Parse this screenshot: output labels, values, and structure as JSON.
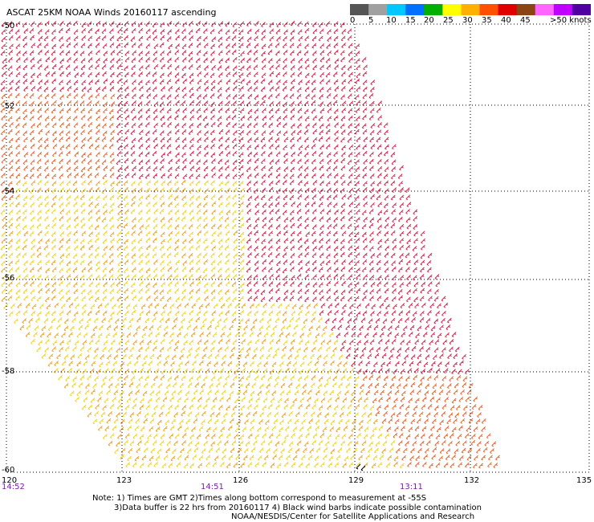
{
  "title": "ASCAT 25KM NOAA Winds 20160117 ascending",
  "color_scale": {
    "unit_label": ">50 knots",
    "labels": [
      "0",
      "5",
      "10",
      "15",
      "20",
      "25",
      "30",
      "35",
      "40",
      "45"
    ],
    "colors": [
      "#555555",
      "#a0a0a0",
      "#00c8ff",
      "#0070ff",
      "#00b000",
      "#ffff00",
      "#ffb000",
      "#ff5000",
      "#e00000",
      "#8b4513",
      "#ff66ff",
      "#c000ff",
      "#5000a0"
    ]
  },
  "latitude_labels": [
    "-50",
    "-52",
    "-54",
    "-56",
    "-58",
    "-60"
  ],
  "longitude_labels": [
    "120",
    "123",
    "126",
    "129",
    "132",
    "135"
  ],
  "time_labels": [
    "14:52",
    "14:51",
    "13:11"
  ],
  "notes": {
    "line1": "Note: 1) Times are GMT 2)Times along bottom correspond to measurement at -55S",
    "line2": "3)Data buffer is 22 hrs from 20160117 4) Black wind barbs indicate possible contamination",
    "line3": "NOAA/NESDIS/Center for Satellite Applications and Research"
  },
  "wind_colors": {
    "strong": "#d8204a",
    "moderate": "#e8622a",
    "light": "#f0a020",
    "weak": "#f2d21a",
    "contaminated": "#000000"
  }
}
